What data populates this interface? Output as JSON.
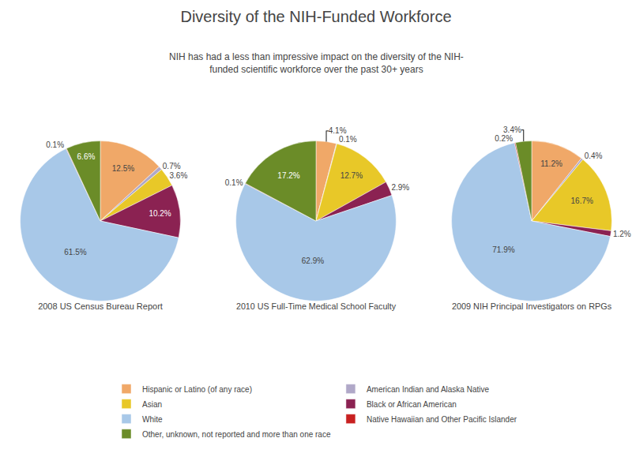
{
  "title": "Diversity of the NIH-Funded Workforce",
  "subtitle": "NIH has had a less than impressive impact on the diversity of the NIH-\nfunded scientific workforce over the past 30+ years",
  "chart_data": [
    {
      "type": "pie",
      "title": "2008 US Census Bureau Report",
      "categories": [
        "Hispanic or Latino (of any race)",
        "American Indian and Alaska Native",
        "Asian",
        "Black or African American",
        "White",
        "Native Hawaiian and Other Pacific Islander",
        "Other, unknown, not reported and more than one race"
      ],
      "values": [
        12.5,
        0.7,
        3.6,
        10.2,
        61.5,
        0.1,
        6.6
      ],
      "value_labels": [
        "12.5%",
        "0.7%",
        "3.6%",
        "10.2%",
        "61.5%",
        "0.1%",
        "6.6%"
      ],
      "colors": [
        "#f0a868",
        "#b0a8c8",
        "#e8c828",
        "#8b2252",
        "#a8c8e8",
        "#c82020",
        "#6b8c28"
      ],
      "data_labels": true
    },
    {
      "type": "pie",
      "title": "2010 US Full-Time Medical School Faculty",
      "categories": [
        "Hispanic or Latino (of any race)",
        "American Indian and Alaska Native",
        "Asian",
        "Black or African American",
        "White",
        "Native Hawaiian and Other Pacific Islander",
        "Other, unknown, not reported and more than one race"
      ],
      "values": [
        4.1,
        0.1,
        12.7,
        2.9,
        62.9,
        0.1,
        17.2
      ],
      "value_labels": [
        "4.1%",
        "0.1%",
        "12.7%",
        "2.9%",
        "62.9%",
        "0.1%",
        "17.2%"
      ],
      "colors": [
        "#f0a868",
        "#b0a8c8",
        "#e8c828",
        "#8b2252",
        "#a8c8e8",
        "#c82020",
        "#6b8c28"
      ],
      "data_labels": true
    },
    {
      "type": "pie",
      "title": "2009 NIH Principal Investigators on RPGs",
      "categories": [
        "Hispanic or Latino (of any race)",
        "American Indian and Alaska Native",
        "Asian",
        "Black or African American",
        "White",
        "Native Hawaiian and Other Pacific Islander",
        "Other, unknown, not reported and more than one race"
      ],
      "values": [
        11.2,
        0.4,
        16.7,
        1.2,
        71.9,
        0.2,
        3.4
      ],
      "value_labels": [
        "11.2%",
        "0.4%",
        "16.7%",
        "1.2%",
        "71.9%",
        "0.2%",
        "3.4%"
      ],
      "colors": [
        "#f0a868",
        "#b0a8c8",
        "#e8c828",
        "#8b2252",
        "#a8c8e8",
        "#c82020",
        "#6b8c28"
      ],
      "data_labels": true
    }
  ]
}
